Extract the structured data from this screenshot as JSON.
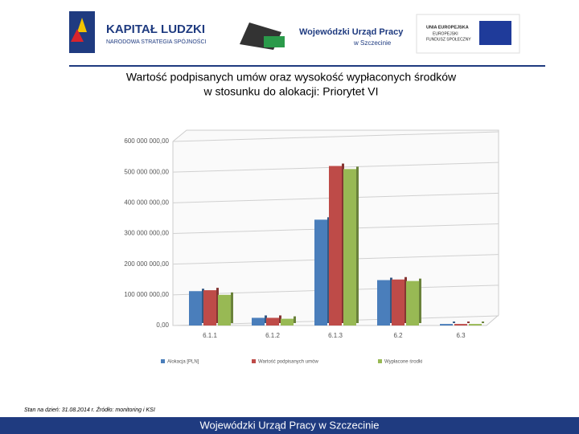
{
  "header": {
    "logo1_title": "KAPITAŁ LUDZKI",
    "logo1_subtitle": "NARODOWA STRATEGIA SPÓJNOŚCI",
    "logo2_title": "Wojewódzki Urząd Pracy",
    "logo2_subtitle": "w Szczecinie",
    "logo3_lines": [
      "UNIA EUROPEJSKA",
      "EUROPEJSKI",
      "FUNDUSZ SPOŁECZNY"
    ]
  },
  "chart_data": {
    "type": "bar",
    "title": [
      "Wartość podpisanych umów oraz wysokość wypłaconych środków",
      "w stosunku do alokacji: Priorytet VI"
    ],
    "categories": [
      "6.1.1",
      "6.1.2",
      "6.1.3",
      "6.2",
      "6.3"
    ],
    "series": [
      {
        "name": "Alokacja [PLN]",
        "color": "#4a7ebb",
        "values": [
          112000000,
          25000000,
          345000000,
          148000000,
          5000000
        ]
      },
      {
        "name": "Wartość podpisanych umów",
        "color": "#be4b48",
        "values": [
          115000000,
          25000000,
          520000000,
          150000000,
          5000000
        ]
      },
      {
        "name": "Wypłacone środki",
        "color": "#98b954",
        "values": [
          100000000,
          22000000,
          510000000,
          145000000,
          5000000
        ]
      }
    ],
    "ylim": [
      0,
      600000000
    ],
    "yticks": [
      {
        "value": 0,
        "label": "0,00"
      },
      {
        "value": 100000000,
        "label": "100 000 000,00"
      },
      {
        "value": 200000000,
        "label": "200 000 000,00"
      },
      {
        "value": 300000000,
        "label": "300 000 000,00"
      },
      {
        "value": 400000000,
        "label": "400 000 000,00"
      },
      {
        "value": 500000000,
        "label": "500 000 000,00"
      },
      {
        "value": 600000000,
        "label": "600 000 000,00"
      }
    ],
    "grid": true,
    "legend": "bottom"
  },
  "footnote": "Stan na dzień: 31.08.2014 r. Źródło: monitoring i KSI",
  "footer": "Wojewódzki Urząd Pracy w Szczecinie"
}
